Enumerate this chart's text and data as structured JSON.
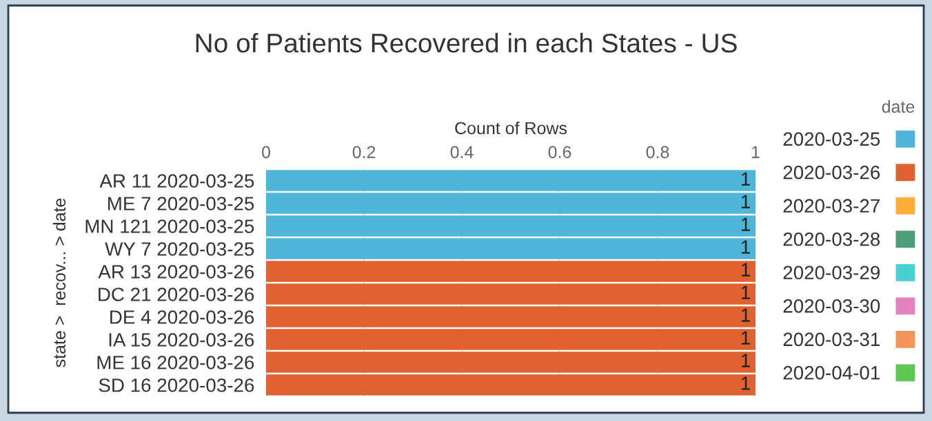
{
  "chart_data": {
    "type": "bar",
    "orientation": "horizontal",
    "title": "No of Patients Recovered in each States - US",
    "xlabel": "Count of Rows",
    "ylabel": "state >  recov... > date",
    "legend_title": "date",
    "legend": "right",
    "grid": "x",
    "data_labels": true,
    "categories": [
      "AR 11 2020-03-25",
      "ME 7 2020-03-25",
      "MN 121 2020-03-25",
      "WY 7 2020-03-25",
      "AR 13 2020-03-26",
      "DC 21 2020-03-26",
      "DE 4 2020-03-26",
      "IA 15 2020-03-26",
      "ME 16 2020-03-26",
      "SD 16 2020-03-26"
    ],
    "xlim": [
      0,
      1
    ],
    "xticks": [
      0,
      0.2,
      0.4,
      0.6,
      0.8,
      1
    ],
    "series": [
      {
        "name": "2020-03-25",
        "color": "#4fb5d9",
        "values": [
          1,
          1,
          1,
          1,
          null,
          null,
          null,
          null,
          null,
          null
        ]
      },
      {
        "name": "2020-03-26",
        "color": "#e06132",
        "values": [
          null,
          null,
          null,
          null,
          1,
          1,
          1,
          1,
          1,
          1
        ]
      },
      {
        "name": "2020-03-27",
        "color": "#fbaf3b",
        "values": [
          null,
          null,
          null,
          null,
          null,
          null,
          null,
          null,
          null,
          null
        ]
      },
      {
        "name": "2020-03-28",
        "color": "#4f9e7a",
        "values": [
          null,
          null,
          null,
          null,
          null,
          null,
          null,
          null,
          null,
          null
        ]
      },
      {
        "name": "2020-03-29",
        "color": "#49d0d1",
        "values": [
          null,
          null,
          null,
          null,
          null,
          null,
          null,
          null,
          null,
          null
        ]
      },
      {
        "name": "2020-03-30",
        "color": "#e283bd",
        "values": [
          null,
          null,
          null,
          null,
          null,
          null,
          null,
          null,
          null,
          null
        ]
      },
      {
        "name": "2020-03-31",
        "color": "#f59459",
        "values": [
          null,
          null,
          null,
          null,
          null,
          null,
          null,
          null,
          null,
          null
        ]
      },
      {
        "name": "2020-04-01",
        "color": "#5fc855",
        "values": [
          null,
          null,
          null,
          null,
          null,
          null,
          null,
          null,
          null,
          null
        ]
      }
    ]
  }
}
